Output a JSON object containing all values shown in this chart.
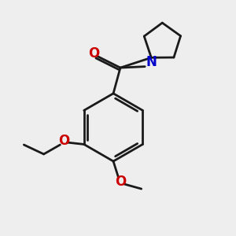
{
  "background_color": "#eeeeee",
  "bond_color": "#1a1a1a",
  "oxygen_color": "#cc0000",
  "nitrogen_color": "#0000cc",
  "lw": 2.0,
  "figsize": [
    3.0,
    3.0
  ],
  "dpi": 100,
  "xlim": [
    -1,
    9
  ],
  "ylim": [
    -1,
    9
  ]
}
